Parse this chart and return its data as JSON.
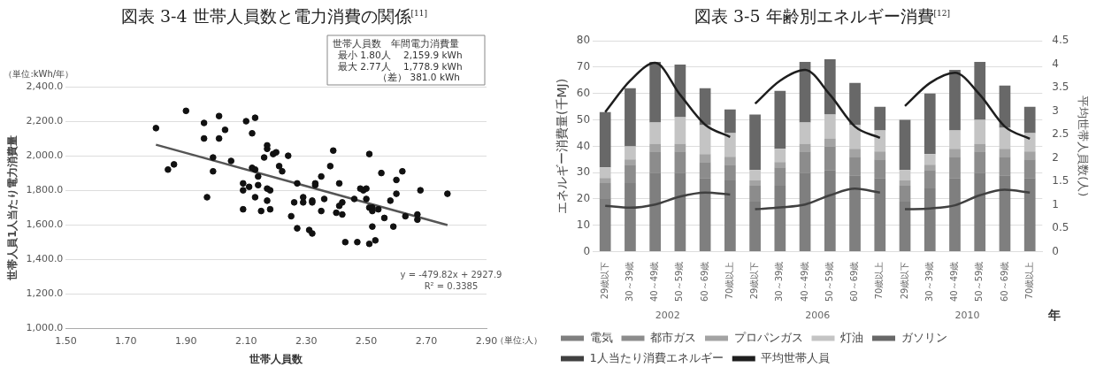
{
  "chart_data": [
    {
      "type": "scatter",
      "title": "図表 3-4 世帯人員数と電力消費の関係$^{[11]}$",
      "xlabel": "世帯人員数",
      "ylabel": "世帯人員1人当たり電力消費量",
      "annotations": [
        "世帯人員数　年間電力消費量",
        "最小 1.80人　 2,159.9 kWh",
        "最大 2.77人　 1,778.9 kWh",
        "（差） 381.0 kWh",
        "y = -479.82x + 2927.9",
        "R² = 0.3385",
        "（単位:kWh/年）",
        "（単位:人）"
      ],
      "xlim": [
        1.5,
        2.9
      ],
      "xticks": [
        {
          "value": 1.5,
          "label": "1.50"
        },
        {
          "value": 1.7,
          "label": "1.70"
        },
        {
          "value": 1.9,
          "label": "1.90"
        },
        {
          "value": 2.1,
          "label": "2.10"
        },
        {
          "value": 2.3,
          "label": "2.30"
        },
        {
          "value": 2.5,
          "label": "2.50"
        },
        {
          "value": 2.7,
          "label": "2.70"
        },
        {
          "value": 2.9,
          "label": "2.90"
        }
      ],
      "ylim": [
        1000,
        2400
      ],
      "yticks": [
        {
          "value": 1000,
          "label": "1,000.0"
        },
        {
          "value": 1200,
          "label": "1,200.0"
        },
        {
          "value": 1400,
          "label": "1,400.0"
        },
        {
          "value": 1600,
          "label": "1,600.0"
        },
        {
          "value": 1800,
          "label": "1,800.0"
        },
        {
          "value": 2000,
          "label": "2,000.0"
        },
        {
          "value": 2200,
          "label": "2,200.0"
        },
        {
          "value": 2400,
          "label": "2,400.0"
        }
      ],
      "grid": "y",
      "marker": "circle",
      "legend": false,
      "series": [
        {
          "type": "scatter",
          "color": "#111111",
          "x": [
            1.8,
            1.84,
            1.86,
            1.9,
            1.96,
            1.96,
            1.97,
            1.99,
            1.99,
            2.01,
            2.01,
            2.03,
            2.05,
            2.09,
            2.09,
            2.09,
            2.1,
            2.11,
            2.12,
            2.12,
            2.13,
            2.13,
            2.13,
            2.14,
            2.14,
            2.15,
            2.16,
            2.17,
            2.17,
            2.17,
            2.17,
            2.18,
            2.18,
            2.19,
            2.2,
            2.21,
            2.22,
            2.24,
            2.25,
            2.27,
            2.26,
            2.27,
            2.29,
            2.29,
            2.31,
            2.32,
            2.32,
            2.32,
            2.33,
            2.33,
            2.35,
            2.35,
            2.36,
            2.38,
            2.39,
            2.4,
            2.41,
            2.42,
            2.41,
            2.42,
            2.43,
            2.46,
            2.47,
            2.48,
            2.49,
            2.5,
            2.5,
            2.51,
            2.51,
            2.51,
            2.52,
            2.52,
            2.52,
            2.53,
            2.54,
            2.55,
            2.56,
            2.58,
            2.59,
            2.6,
            2.6,
            2.62,
            2.63,
            2.67,
            2.67,
            2.68,
            2.77
          ],
          "values": [
            2160,
            1920,
            1950,
            2260,
            2190,
            2100,
            1760,
            1990,
            1910,
            2230,
            2100,
            2150,
            1970,
            1840,
            1800,
            1690,
            2200,
            1820,
            1930,
            2130,
            1920,
            2220,
            1760,
            1830,
            1880,
            1680,
            1990,
            1810,
            2040,
            2060,
            1740,
            1800,
            1690,
            2010,
            2020,
            1940,
            1910,
            2000,
            1650,
            1840,
            1730,
            1580,
            1760,
            1730,
            1570,
            1550,
            1740,
            1730,
            1840,
            1830,
            1880,
            1680,
            1750,
            1940,
            2030,
            1670,
            1840,
            1730,
            1710,
            1660,
            1500,
            1750,
            1500,
            1810,
            1800,
            1750,
            1810,
            2010,
            1700,
            1490,
            1700,
            1590,
            1680,
            1510,
            1690,
            1900,
            1640,
            1740,
            1590,
            1860,
            1780,
            1910,
            1650,
            1660,
            1630,
            1800,
            1780
          ]
        },
        {
          "type": "line",
          "marker": "none",
          "color": "#555555",
          "x": [
            1.8,
            2.77
          ],
          "values": [
            2064,
            1599
          ]
        }
      ]
    },
    {
      "type": "bar",
      "title": "図表 3-5 年齢別エネルギー消費$^{[12]}$",
      "ylabel": "エネルギー消費量(千MJ)",
      "y2label": "平均世帯人員数(人)",
      "categories": [
        "29歳以下",
        "30～39歳",
        "40～49歳",
        "50～59歳",
        "60～69歳",
        "70歳以上",
        "29歳以下",
        "30～39歳",
        "40～49歳",
        "50～59歳",
        "60～69歳",
        "70歳以上",
        "29歳以下",
        "30～39歳",
        "40～49歳",
        "50～59歳",
        "60～69歳",
        "70歳以上"
      ],
      "annotations": [
        "2002",
        "2006",
        "2010",
        "年"
      ],
      "stacked": true,
      "grid": "y",
      "legend": "bottom",
      "ylim": [
        0,
        80
      ],
      "yticks": [
        0,
        10,
        20,
        30,
        40,
        50,
        60,
        70,
        80
      ],
      "y2lim": [
        0,
        4.5
      ],
      "y2ticks": [
        0,
        0.5,
        1,
        1.5,
        2,
        2.5,
        3,
        3.5,
        4,
        4.5
      ],
      "series": [
        {
          "name": "電気",
          "color": "#7f7f7f",
          "values": [
            20,
            26,
            30,
            30,
            28,
            27,
            19,
            25,
            30,
            31,
            29,
            28,
            19,
            24,
            28,
            30,
            29,
            28
          ]
        },
        {
          "name": "都市ガス",
          "color": "#8c8c8c",
          "values": [
            6,
            7,
            8,
            8,
            6,
            6,
            6,
            7,
            8,
            9,
            7,
            7,
            6,
            7,
            8,
            8,
            7,
            7
          ]
        },
        {
          "name": "プロパンガス",
          "color": "#a3a3a3",
          "values": [
            2,
            2,
            3,
            3,
            3,
            3,
            2,
            2,
            3,
            3,
            3,
            3,
            2,
            2,
            3,
            3,
            3,
            3
          ]
        },
        {
          "name": "灯油",
          "color": "#c4c4c4",
          "values": [
            4,
            5,
            8,
            10,
            11,
            9,
            4,
            5,
            8,
            9,
            9,
            8,
            4,
            4,
            7,
            9,
            8,
            7
          ]
        },
        {
          "name": "ガソリン",
          "color": "#686868",
          "values": [
            21,
            22,
            23,
            20,
            14,
            9,
            21,
            22,
            23,
            21,
            16,
            9,
            19,
            23,
            23,
            22,
            16,
            10
          ]
        },
        {
          "name": "1人当たり消費エネルギー",
          "type": "line",
          "color": "#404040",
          "values": [
            17.4,
            16.7,
            17.9,
            20.9,
            22.4,
            21.7,
            null,
            null,
            null,
            null,
            null,
            null,
            null,
            null,
            null,
            null,
            null,
            null
          ]
        },
        {
          "type": "line",
          "color": "#404040",
          "values": [
            null,
            null,
            null,
            null,
            null,
            null,
            16.1,
            16.8,
            17.9,
            21.4,
            23.9,
            22.4,
            null,
            null,
            null,
            null,
            null,
            null
          ]
        },
        {
          "type": "line",
          "color": "#404040",
          "values": [
            null,
            null,
            null,
            null,
            null,
            null,
            null,
            null,
            null,
            null,
            null,
            null,
            16.1,
            16.4,
            17.6,
            21.4,
            23.5,
            22.4
          ]
        },
        {
          "name": "平均世帯人員",
          "type": "line",
          "axis": "y2",
          "color": "#1e1e1e",
          "values": [
            2.98,
            3.65,
            4.03,
            3.35,
            2.71,
            2.45,
            null,
            null,
            null,
            null,
            null,
            null,
            null,
            null,
            null,
            null,
            null,
            null
          ]
        },
        {
          "type": "line",
          "axis": "y2",
          "color": "#1e1e1e",
          "values": [
            null,
            null,
            null,
            null,
            null,
            null,
            3.16,
            3.65,
            3.88,
            3.35,
            2.67,
            2.43,
            null,
            null,
            null,
            null,
            null,
            null
          ]
        },
        {
          "type": "line",
          "axis": "y2",
          "color": "#1e1e1e",
          "values": [
            null,
            null,
            null,
            null,
            null,
            null,
            null,
            null,
            null,
            null,
            null,
            null,
            3.11,
            3.6,
            3.82,
            3.35,
            2.67,
            2.41
          ]
        }
      ]
    }
  ]
}
